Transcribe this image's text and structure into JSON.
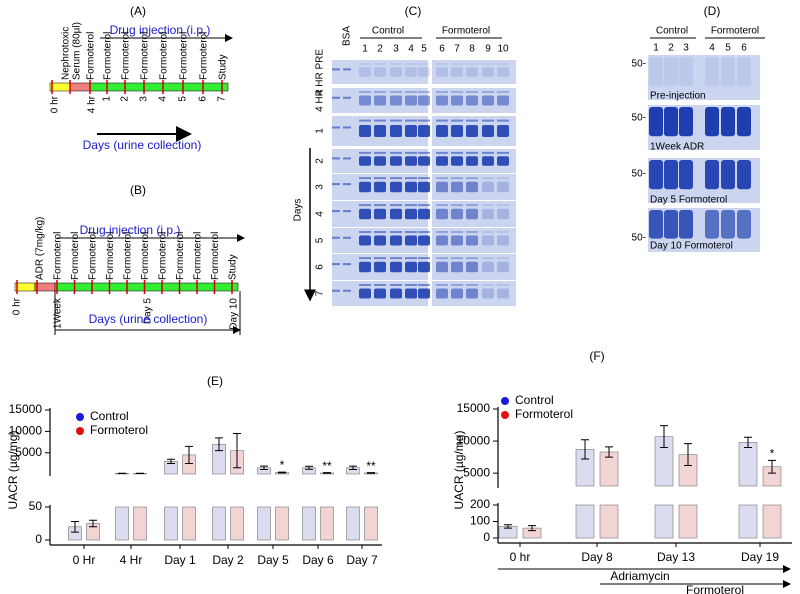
{
  "panel_a": {
    "label": "(A)",
    "injection": "Drug injection (i.p.)",
    "serum": [
      "Nephrotoxic",
      "Serum (80µl)"
    ],
    "events": [
      "Formoterol",
      "Formoterol",
      "Formoterol",
      "Formoterol",
      "Formoterol",
      "Formoterol",
      "Formoterol",
      "Study"
    ],
    "times": [
      "0 hr",
      "4 hr",
      "1",
      "2",
      "3",
      "4",
      "5",
      "6",
      "7"
    ],
    "axis_label": "Days (urine collection)"
  },
  "panel_b": {
    "label": "(B)",
    "injection": "Drug injection (i.p.)",
    "adr": "ADR (7mg/kg)",
    "events": [
      "Formoterol",
      "Formoterol",
      "Formoterol",
      "Formoterol",
      "Formoterol",
      "Formoterol",
      "Formoterol",
      "Formoterol",
      "Formoterol",
      "Formoterol",
      "Study"
    ],
    "times": [
      "0 hr",
      "1Week",
      "Day 5",
      "Day 10"
    ],
    "axis_label": "Days (urine collection)"
  },
  "panel_c": {
    "label": "(C)",
    "bsa": "BSA",
    "groups": [
      "Control",
      "Formoterol"
    ],
    "lanes": [
      "1",
      "2",
      "3",
      "4",
      "5",
      "6",
      "7",
      "8",
      "9",
      "10"
    ],
    "rows": [
      "4 HR PRE",
      "4 HR",
      "1",
      "2",
      "3",
      "4",
      "5",
      "6",
      "7"
    ],
    "axis_label": "Days"
  },
  "panel_d": {
    "label": "(D)",
    "groups": [
      "Control",
      "Formoterol"
    ],
    "lanes": [
      "1",
      "2",
      "3",
      "4",
      "5",
      "6"
    ],
    "marker": "50-",
    "gels": [
      "Pre-injection",
      "1Week ADR",
      "Day 5 Formoterol",
      "Day 10 Formoterol"
    ]
  },
  "chart_data": [
    {
      "type": "bar",
      "label": "(E)",
      "y_label": "UACR (µg/mg)",
      "categories": [
        "0 Hr",
        "4 Hr",
        "Day 1",
        "Day 2",
        "Day 5",
        "Day 6",
        "Day 7"
      ],
      "segments": [
        {
          "ylim": [
            0,
            50
          ],
          "yticks": [
            0,
            50
          ]
        },
        {
          "ylim": [
            50,
            15000
          ],
          "yticks": [
            5000,
            10000,
            15000
          ]
        }
      ],
      "series": [
        {
          "name": "Control",
          "color": "#1a1adc",
          "bar_color": "#dcdcf0",
          "values": [
            20,
            200,
            3000,
            7000,
            1500,
            1500,
            1500
          ],
          "errors": [
            8,
            30,
            500,
            1500,
            400,
            350,
            400
          ]
        },
        {
          "name": "Formoterol",
          "color": "#e01010",
          "bar_color": "#f2d4d4",
          "values": [
            25,
            200,
            4500,
            5500,
            400,
            300,
            300
          ],
          "errors": [
            5,
            30,
            2000,
            4000,
            100,
            80,
            80
          ],
          "markers": [
            null,
            null,
            null,
            null,
            "*",
            "**",
            "**"
          ]
        }
      ]
    },
    {
      "type": "bar",
      "label": "(F)",
      "y_label": "UACR (µg/mg)",
      "categories": [
        "0 hr",
        "Day 8",
        "Day 13",
        "Day 19"
      ],
      "segments": [
        {
          "ylim": [
            0,
            200
          ],
          "yticks": [
            0,
            100,
            200
          ]
        },
        {
          "ylim": [
            3000,
            15000
          ],
          "yticks": [
            5000,
            10000,
            15000
          ]
        }
      ],
      "series": [
        {
          "name": "Control",
          "color": "#1a1adc",
          "bar_color": "#dcdcf0",
          "values": [
            70,
            8700,
            10700,
            9800
          ],
          "errors": [
            10,
            1500,
            1700,
            800
          ]
        },
        {
          "name": "Formoterol",
          "color": "#e01010",
          "bar_color": "#f2d4d4",
          "values": [
            60,
            8300,
            7900,
            6000
          ],
          "errors": [
            15,
            800,
            1700,
            1000
          ],
          "markers": [
            null,
            null,
            null,
            "*"
          ]
        }
      ],
      "treatments": [
        "Adriamycin",
        "Formoterol"
      ]
    }
  ]
}
